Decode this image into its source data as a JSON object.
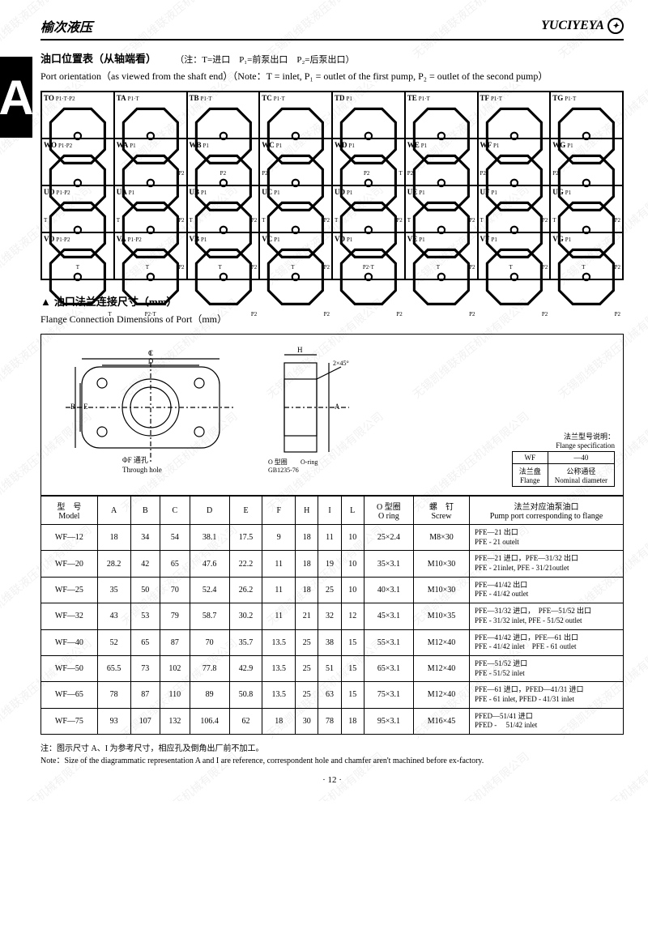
{
  "header": {
    "left": "榆次液压",
    "right": "YUCIYEYA"
  },
  "side_tab": "A",
  "port_orientation": {
    "title_cn": "油口位置表（从轴端看）",
    "note_cn": "（注：T=进口　P₁=前泵出口　P₂=后泵出口）",
    "title_en": "Port orientation（as viewed from the shaft end）（Note：T = inlet, P₁ = outlet of the first pump, P₂ = outlet of the second pump）",
    "cells": [
      {
        "code": "TO",
        "tl": "P1·T·P2"
      },
      {
        "code": "TA",
        "tl": "P1·T",
        "r": "P2"
      },
      {
        "code": "TB",
        "tl": "P1·T",
        "b": "P2"
      },
      {
        "code": "TC",
        "tl": "P1·T",
        "l": "P2"
      },
      {
        "code": "TD",
        "tl": "P1",
        "r": "T",
        "b": "P2"
      },
      {
        "code": "TE",
        "tl": "P1·T",
        "l": "P2"
      },
      {
        "code": "TF",
        "tl": "P1·T",
        "l": "P2"
      },
      {
        "code": "TG",
        "tl": "P1·T",
        "l": "P2"
      },
      {
        "code": "WO",
        "tl": "P1·P2",
        "bl": "T"
      },
      {
        "code": "WA",
        "tl": "P1",
        "bl": "T",
        "r": "P2"
      },
      {
        "code": "WB",
        "tl": "P1",
        "bl": "T",
        "r": "P2"
      },
      {
        "code": "WC",
        "tl": "P1",
        "bl": "T",
        "r": "P2"
      },
      {
        "code": "WD",
        "tl": "P1",
        "bl": "T",
        "r": "P2"
      },
      {
        "code": "WE",
        "tl": "P1",
        "bl": "T",
        "r": "P2"
      },
      {
        "code": "WF",
        "tl": "P1",
        "bl": "T",
        "r": "P2"
      },
      {
        "code": "WG",
        "tl": "P1",
        "bl": "T",
        "r": "P2"
      },
      {
        "code": "UO",
        "tl": "P1·P2",
        "b": "T"
      },
      {
        "code": "UA",
        "tl": "P1",
        "b": "T",
        "r": "P2"
      },
      {
        "code": "UB",
        "tl": "P1",
        "b": "T",
        "r": "P2"
      },
      {
        "code": "UC",
        "tl": "P1",
        "b": "T",
        "r": "P2"
      },
      {
        "code": "UD",
        "tl": "P1",
        "b": "P2·T"
      },
      {
        "code": "UE",
        "tl": "P1",
        "b": "T",
        "r": "P2"
      },
      {
        "code": "UF",
        "tl": "P1",
        "b": "T",
        "r": "P2"
      },
      {
        "code": "UG",
        "tl": "P1",
        "b": "T",
        "r": "P2"
      },
      {
        "code": "VO",
        "tl": "P1·P2",
        "br": "T"
      },
      {
        "code": "VA",
        "tl": "P1·P2",
        "b": "P2·T"
      },
      {
        "code": "VB",
        "tl": "P1",
        "br": "T",
        "r": "P2"
      },
      {
        "code": "VC",
        "tl": "P1",
        "br": "T",
        "r": "P2"
      },
      {
        "code": "VD",
        "tl": "P1",
        "br": "T",
        "r": "P2"
      },
      {
        "code": "VE",
        "tl": "P1",
        "br": "T",
        "r": "P2"
      },
      {
        "code": "VF",
        "tl": "P1",
        "br": "T",
        "r": "P2"
      },
      {
        "code": "VG",
        "tl": "P1",
        "br": "T",
        "r": "P2"
      }
    ]
  },
  "flange_section": {
    "title_cn": "油口法兰连接尺寸（mm）",
    "title_en": "Flange Connection Dimensions of Port（mm）",
    "diagram_labels": {
      "through_hole_cn": "ΦF 通孔",
      "through_hole_en": "Through hole",
      "oring_cn": "O 型圈",
      "oring_en": "O-ring",
      "gb": "GB1235-76",
      "chamfer": "2×45°"
    },
    "spec": {
      "title_cn": "法兰型号说明：",
      "title_en": "Flange specification",
      "wf": "WF",
      "size": "—40",
      "flange_cn": "法兰盘",
      "flange_en": "Flange",
      "nom_cn": "公称通径",
      "nom_en": "Nominal diameter"
    }
  },
  "data_table": {
    "headers": {
      "model_cn": "型　号",
      "model_en": "Model",
      "A": "A",
      "B": "B",
      "C": "C",
      "D": "D",
      "E": "E",
      "F": "F",
      "H": "H",
      "I": "I",
      "L": "L",
      "oring_cn": "O 型圈",
      "oring_en": "O ring",
      "screw_cn": "螺　钉",
      "screw_en": "Screw",
      "port_cn": "法兰对应油泵油口",
      "port_en": "Pump port corresponding to flange"
    },
    "rows": [
      {
        "m": "WF—12",
        "A": "18",
        "B": "34",
        "C": "54",
        "D": "38.1",
        "E": "17.5",
        "F": "9",
        "H": "18",
        "I": "11",
        "L": "10",
        "o": "25×2.4",
        "s": "M8×30",
        "p": "PFE—21 出口\nPFE - 21 outelt"
      },
      {
        "m": "WF—20",
        "A": "28.2",
        "B": "42",
        "C": "65",
        "D": "47.6",
        "E": "22.2",
        "F": "11",
        "H": "18",
        "I": "19",
        "L": "10",
        "o": "35×3.1",
        "s": "M10×30",
        "p": "PFE—21 进口，PFE—31/32 出口\nPFE - 21inlet, PFE - 31/21outlet"
      },
      {
        "m": "WF—25",
        "A": "35",
        "B": "50",
        "C": "70",
        "D": "52.4",
        "E": "26.2",
        "F": "11",
        "H": "18",
        "I": "25",
        "L": "10",
        "o": "40×3.1",
        "s": "M10×30",
        "p": "PFE—41/42 出口\nPFE - 41/42 outlet"
      },
      {
        "m": "WF—32",
        "A": "43",
        "B": "53",
        "C": "79",
        "D": "58.7",
        "E": "30.2",
        "F": "11",
        "H": "21",
        "I": "32",
        "L": "12",
        "o": "45×3.1",
        "s": "M10×35",
        "p": "PFE—31/32 进口，　PFE—51/52 出口\nPFE - 31/32 inlet, PFE - 51/52 outlet"
      },
      {
        "m": "WF—40",
        "A": "52",
        "B": "65",
        "C": "87",
        "D": "70",
        "E": "35.7",
        "F": "13.5",
        "H": "25",
        "I": "38",
        "L": "15",
        "o": "55×3.1",
        "s": "M12×40",
        "p": "PFE—41/42 进口，PFE—61 出口\nPFE - 41/42 inlet　PFE - 61 outlet"
      },
      {
        "m": "WF—50",
        "A": "65.5",
        "B": "73",
        "C": "102",
        "D": "77.8",
        "E": "42.9",
        "F": "13.5",
        "H": "25",
        "I": "51",
        "L": "15",
        "o": "65×3.1",
        "s": "M12×40",
        "p": "PFE—51/52 进口\nPFE - 51/52 inlet"
      },
      {
        "m": "WF—65",
        "A": "78",
        "B": "87",
        "C": "110",
        "D": "89",
        "E": "50.8",
        "F": "13.5",
        "H": "25",
        "I": "63",
        "L": "15",
        "o": "75×3.1",
        "s": "M12×40",
        "p": "PFE—61 进口，PFED—41/31 进口\nPFE - 61 inlet, PFED - 41/31 inlet"
      },
      {
        "m": "WF—75",
        "A": "93",
        "B": "107",
        "C": "132",
        "D": "106.4",
        "E": "62",
        "F": "18",
        "H": "30",
        "I": "78",
        "L": "18",
        "o": "95×3.1",
        "s": "M16×45",
        "p": "PFED—51/41 进口\nPFED - 　51/42 inlet"
      }
    ]
  },
  "footnote": {
    "cn": "注：图示尺寸 A、I 为参考尺寸，相应孔及倒角出厂前不加工。",
    "en": "Note：Size of the diagrammatic representation A and I are reference, correspondent hole and chamfer aren't machined before ex-factory."
  },
  "page_number": "· 12 ·",
  "watermark_text": "无锡凯维联液压机械有限公司"
}
